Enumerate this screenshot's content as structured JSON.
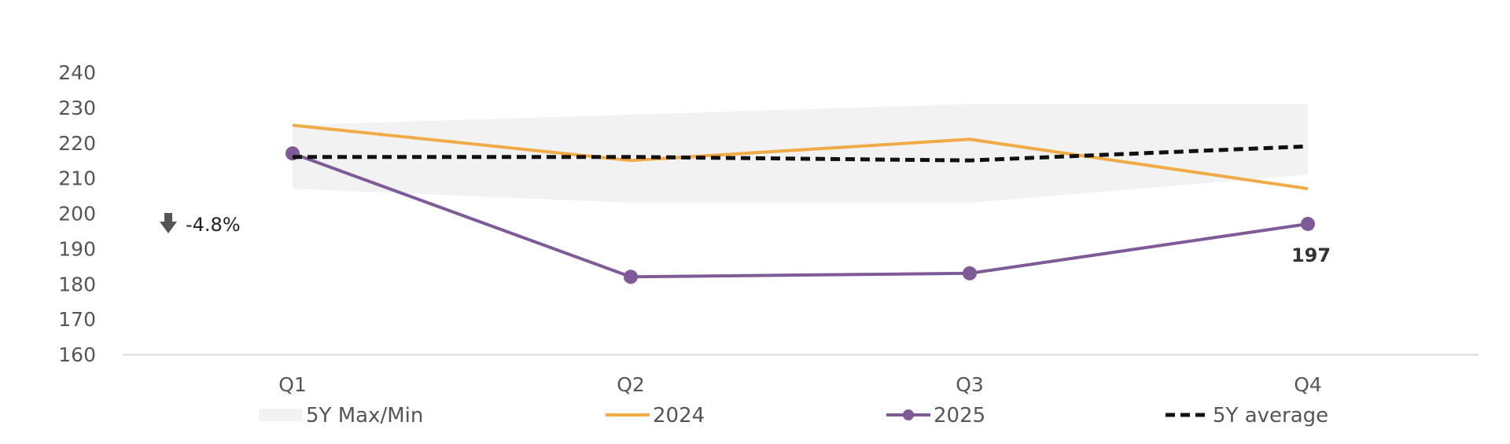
{
  "chart_data": {
    "type": "line",
    "categories": [
      "Q1",
      "Q2",
      "Q3",
      "Q4"
    ],
    "ylim": [
      160,
      240
    ],
    "yticks": [
      160,
      170,
      180,
      190,
      200,
      210,
      220,
      230,
      240
    ],
    "grid": false,
    "legend_position": "bottom",
    "band": {
      "name": "5Y Max/Min",
      "max": [
        225,
        228,
        231,
        231
      ],
      "min": [
        207,
        203,
        203,
        211
      ],
      "color": "#f2f2f2"
    },
    "series": [
      {
        "name": "2024",
        "values": [
          225,
          215,
          221,
          207
        ],
        "color": "#f0ab47",
        "style": "solid",
        "markers": false
      },
      {
        "name": "2025",
        "values": [
          217,
          182,
          183,
          197
        ],
        "color": "#7e5a96",
        "style": "solid",
        "markers": true
      },
      {
        "name": "5Y average",
        "values": [
          216,
          216,
          215,
          219
        ],
        "color": "#111111",
        "style": "dashed",
        "markers": false
      }
    ],
    "annotations": {
      "change": {
        "text": "-4.8%",
        "icon": "arrow-down-icon",
        "color": "#555555"
      },
      "last_value": {
        "text": "197",
        "series": "2025",
        "index": 3
      }
    }
  }
}
